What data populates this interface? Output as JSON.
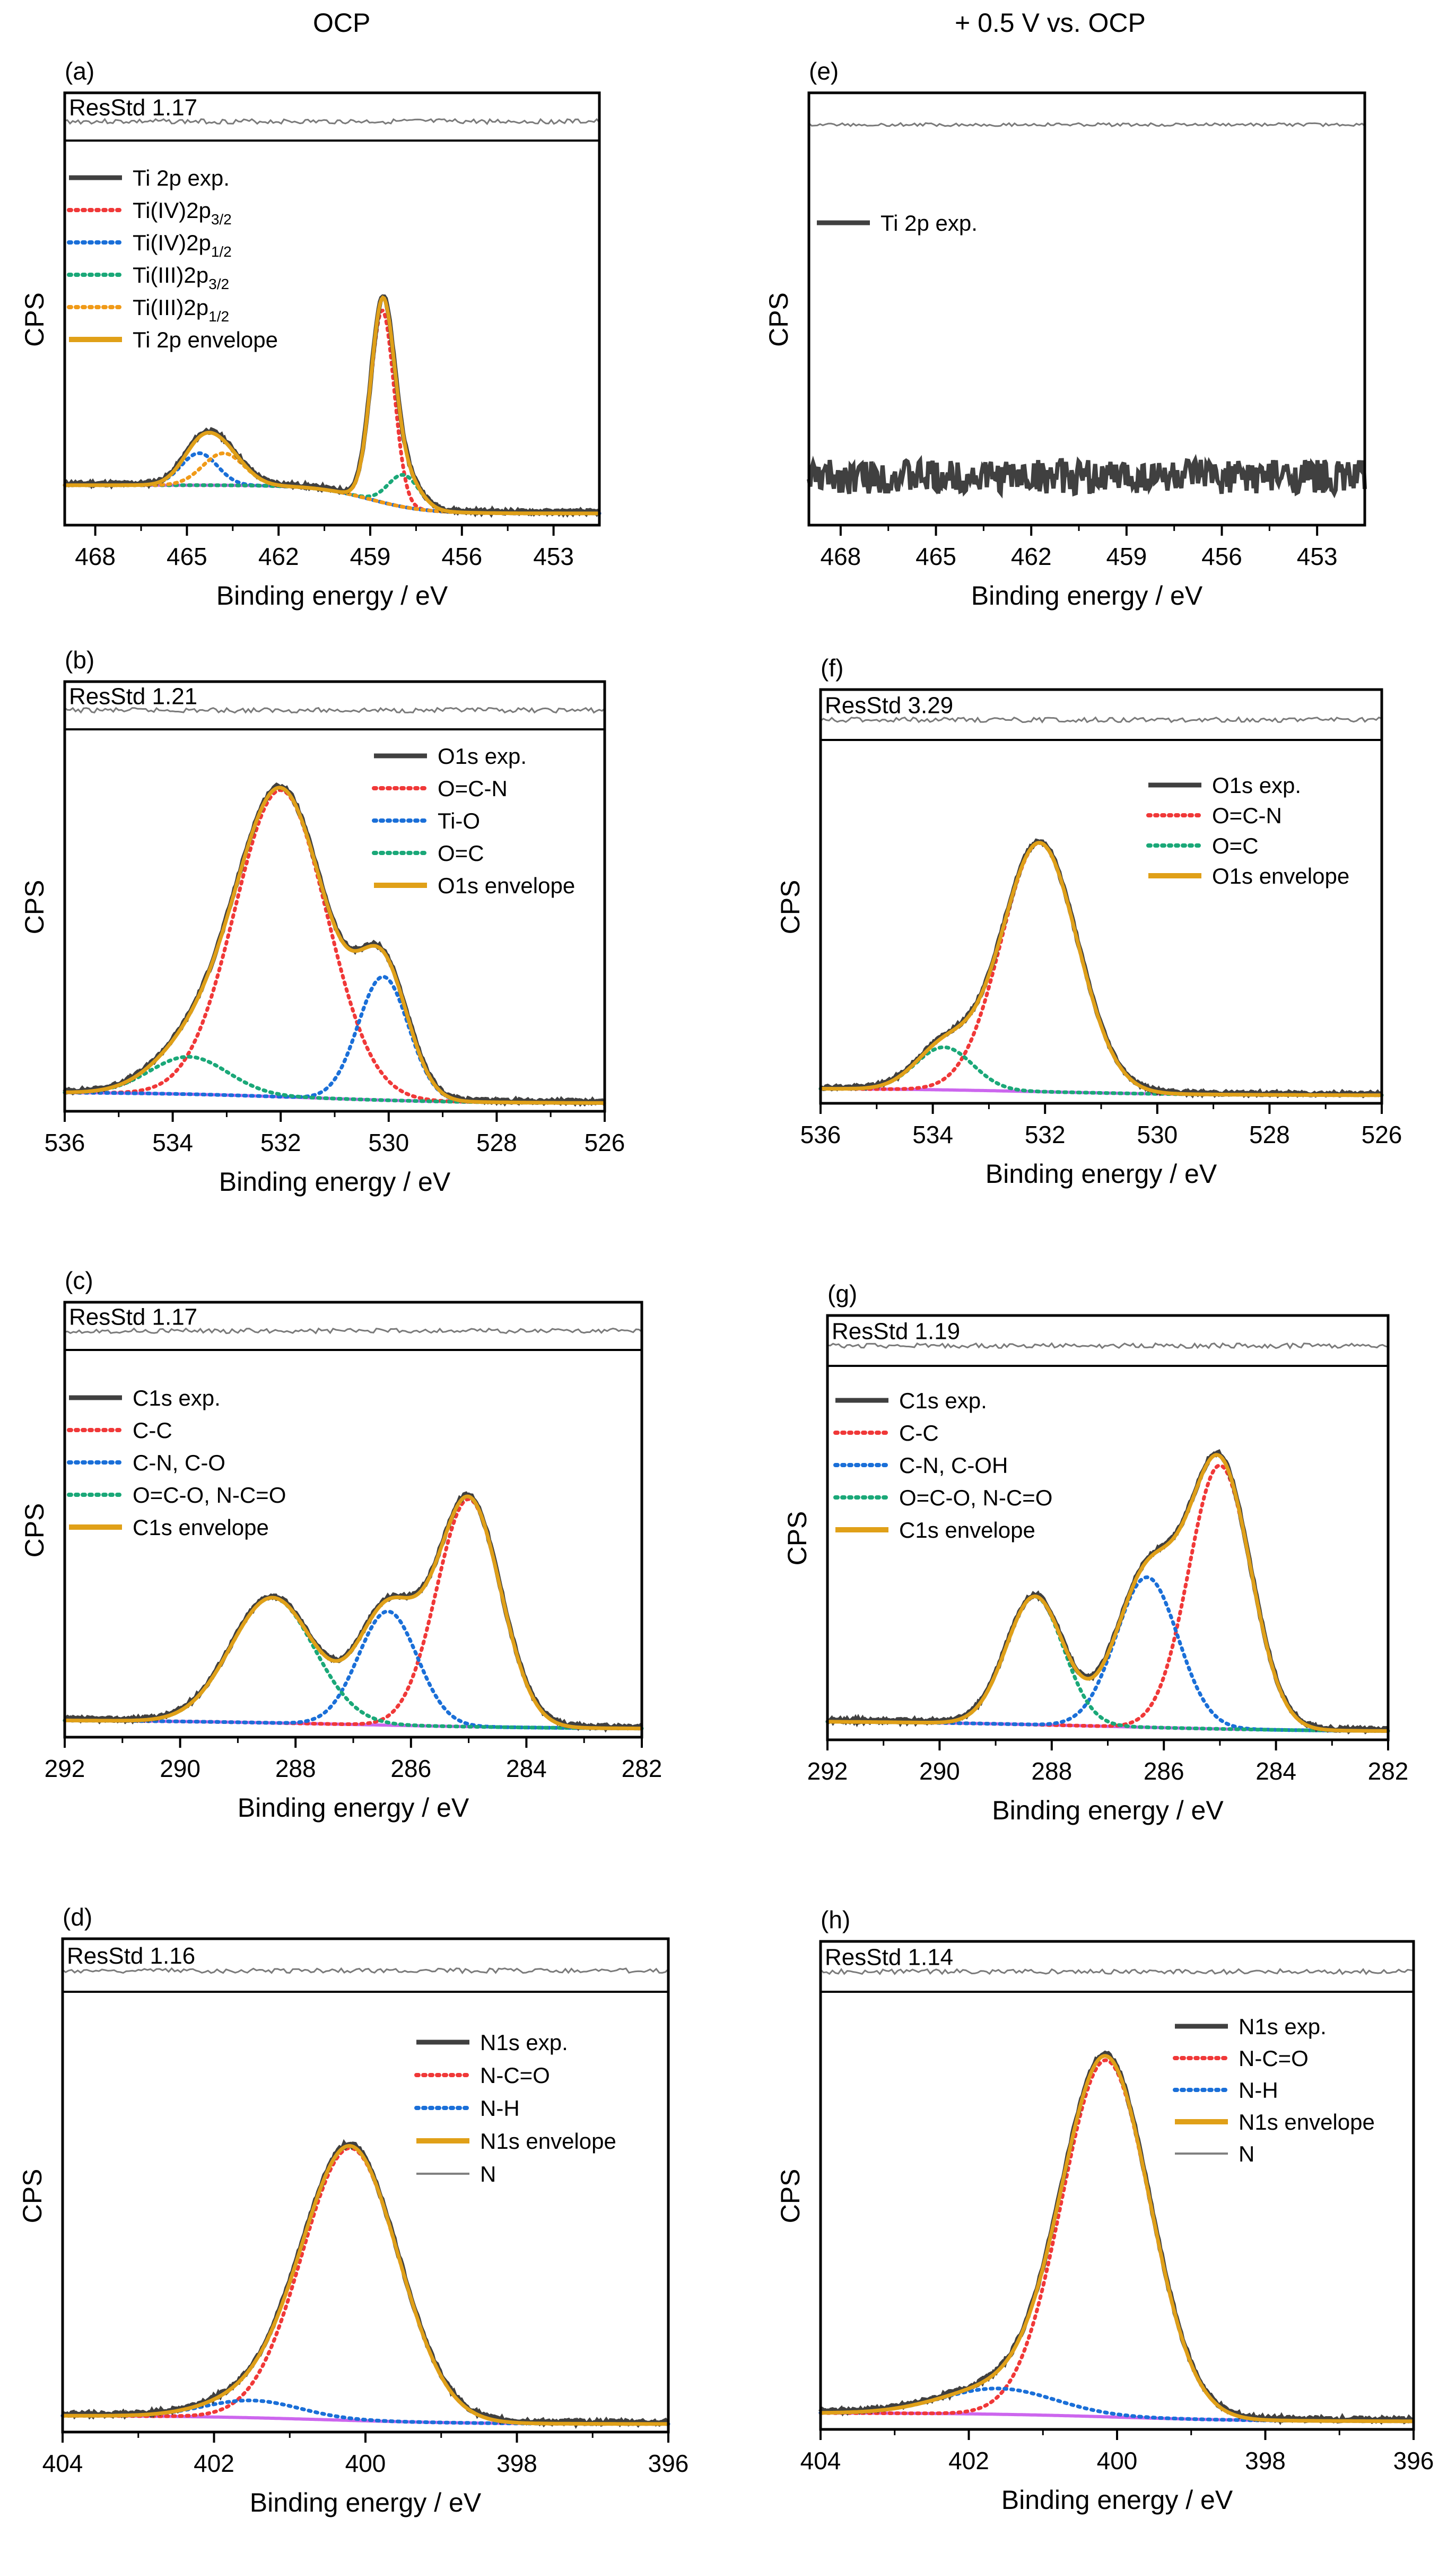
{
  "column_titles": [
    "OCP",
    "+ 0.5 V vs. OCP"
  ],
  "colors": {
    "exp": "#404040",
    "envelope": "#e0a018",
    "background": "#cc66ee",
    "residual": "#7a7a7a",
    "red": "#f03838",
    "blue": "#1a6fd8",
    "green": "#1aa878",
    "orange": "#f09a18",
    "thin": "#808080"
  },
  "chart_data": [
    {
      "panel": "(a)",
      "type": "line",
      "title": "",
      "xlabel": "Binding energy / eV",
      "ylabel": "CPS",
      "xlim": [
        469,
        451.5
      ],
      "ylim": [
        0,
        1
      ],
      "xticks": [
        468,
        465,
        462,
        459,
        456,
        453
      ],
      "resstd": "ResStd 1.17",
      "legend": [
        {
          "text": "Ti 2p exp.",
          "style": "exp"
        },
        {
          "text": "Ti(IV)2p",
          "sub": "3/2",
          "style": "red"
        },
        {
          "text": "Ti(IV)2p",
          "sub": "1/2",
          "style": "blue"
        },
        {
          "text": "Ti(III)2p",
          "sub": "3/2",
          "style": "green"
        },
        {
          "text": "Ti(III)2p",
          "sub": "1/2",
          "style": "orange"
        },
        {
          "text": "Ti 2p envelope",
          "style": "envelope"
        }
      ],
      "background": {
        "start": 0.085,
        "end": 0.01,
        "center": 459.0,
        "width": 0.9
      },
      "peaks": [
        {
          "style": "red",
          "center": 458.6,
          "height": 0.51,
          "fwhm": 0.9
        },
        {
          "style": "blue",
          "center": 464.6,
          "height": 0.085,
          "fwhm": 1.4
        },
        {
          "style": "green",
          "center": 457.9,
          "height": 0.085,
          "fwhm": 1.2
        },
        {
          "style": "orange",
          "center": 463.8,
          "height": 0.085,
          "fwhm": 1.6
        }
      ],
      "noise": 0.004
    },
    {
      "panel": "(b)",
      "type": "line",
      "title": "",
      "xlabel": "Binding energy / eV",
      "ylabel": "CPS",
      "xlim": [
        536,
        526
      ],
      "ylim": [
        0,
        1
      ],
      "xticks": [
        536,
        534,
        532,
        530,
        528,
        526
      ],
      "resstd": "ResStd 1.21",
      "legend": [
        {
          "text": "O1s exp.",
          "style": "exp"
        },
        {
          "text": "O=C-N",
          "style": "red"
        },
        {
          "text": "Ti-O",
          "style": "blue"
        },
        {
          "text": "O=C",
          "style": "green"
        },
        {
          "text": "O1s envelope",
          "style": "envelope"
        }
      ],
      "background": {
        "start": 0.03,
        "end": 0.0,
        "center": 531.5,
        "width": 1.5
      },
      "peaks": [
        {
          "style": "red",
          "center": 532.0,
          "height": 0.82,
          "fwhm": 2.0
        },
        {
          "style": "blue",
          "center": 530.1,
          "height": 0.33,
          "fwhm": 1.1
        },
        {
          "style": "green",
          "center": 533.7,
          "height": 0.1,
          "fwhm": 1.7
        }
      ],
      "noise": 0.004
    },
    {
      "panel": "(c)",
      "type": "line",
      "title": "",
      "xlabel": "Binding energy / eV",
      "ylabel": "CPS",
      "xlim": [
        292,
        282
      ],
      "ylim": [
        0,
        1
      ],
      "xticks": [
        292,
        290,
        288,
        286,
        284,
        282
      ],
      "resstd": "ResStd 1.17",
      "legend": [
        {
          "text": "C1s exp.",
          "style": "exp"
        },
        {
          "text": "C-C",
          "style": "red"
        },
        {
          "text": "C-N, C-O",
          "style": "blue"
        },
        {
          "text": "O=C-O, N-C=O",
          "style": "green"
        },
        {
          "text": "C1s envelope",
          "style": "envelope"
        }
      ],
      "background": {
        "start": 0.025,
        "end": 0.0,
        "center": 287.0,
        "width": 2.0
      },
      "peaks": [
        {
          "style": "red",
          "center": 285.0,
          "height": 0.6,
          "fwhm": 1.3
        },
        {
          "style": "blue",
          "center": 286.4,
          "height": 0.3,
          "fwhm": 1.2
        },
        {
          "style": "green",
          "center": 288.4,
          "height": 0.33,
          "fwhm": 1.7
        }
      ],
      "noise": 0.004
    },
    {
      "panel": "(d)",
      "type": "line",
      "title": "",
      "xlabel": "Binding energy / eV",
      "ylabel": "CPS",
      "xlim": [
        404,
        396
      ],
      "ylim": [
        0,
        1
      ],
      "xticks": [
        404,
        402,
        400,
        398,
        396
      ],
      "resstd": "ResStd 1.16",
      "legend": [
        {
          "text": "N1s exp.",
          "style": "exp"
        },
        {
          "text": "N-C=O",
          "style": "red"
        },
        {
          "text": "N-H",
          "style": "blue"
        },
        {
          "text": "N1s envelope",
          "style": "envelope"
        },
        {
          "text": "N",
          "style": "thin"
        }
      ],
      "background": {
        "start": 0.02,
        "end": 0.0,
        "center": 400.5,
        "width": 1.0
      },
      "peaks": [
        {
          "style": "red",
          "center": 400.2,
          "height": 0.63,
          "fwhm": 1.5
        },
        {
          "style": "blue",
          "center": 401.5,
          "height": 0.04,
          "fwhm": 1.5
        }
      ],
      "noise": 0.004
    },
    {
      "panel": "(e)",
      "type": "line",
      "title": "",
      "xlabel": "Binding energy / eV",
      "ylabel": "CPS",
      "xlim": [
        469,
        451.5
      ],
      "ylim": [
        0,
        1
      ],
      "xticks": [
        468,
        465,
        462,
        459,
        456,
        453
      ],
      "resstd": "",
      "legend": [
        {
          "text": "Ti 2p exp.",
          "style": "exp"
        }
      ],
      "background": {
        "start": 0.0,
        "end": 0.0,
        "center": 460,
        "width": 1
      },
      "peaks": [],
      "noise_only": true,
      "noise_base": 0.095,
      "noise": 0.04
    },
    {
      "panel": "(f)",
      "type": "line",
      "title": "",
      "xlabel": "Binding energy / eV",
      "ylabel": "CPS",
      "xlim": [
        536,
        526
      ],
      "ylim": [
        0,
        1
      ],
      "xticks": [
        536,
        534,
        532,
        530,
        528,
        526
      ],
      "resstd": "ResStd 3.29",
      "legend": [
        {
          "text": "O1s exp.",
          "style": "exp"
        },
        {
          "text": "O=C-N",
          "style": "red"
        },
        {
          "text": "O=C",
          "style": "green"
        },
        {
          "text": "O1s envelope",
          "style": "envelope"
        }
      ],
      "background": {
        "start": 0.02,
        "end": 0.0,
        "center": 532.0,
        "width": 1.5
      },
      "peaks": [
        {
          "style": "red",
          "center": 532.1,
          "height": 0.7,
          "fwhm": 1.6
        },
        {
          "style": "green",
          "center": 533.8,
          "height": 0.12,
          "fwhm": 1.2
        }
      ],
      "noise": 0.004
    },
    {
      "panel": "(g)",
      "type": "line",
      "title": "",
      "xlabel": "Binding energy / eV",
      "ylabel": "CPS",
      "xlim": [
        292,
        282
      ],
      "ylim": [
        0,
        1
      ],
      "xticks": [
        292,
        290,
        288,
        286,
        284,
        282
      ],
      "resstd": "ResStd 1.19",
      "legend": [
        {
          "text": "C1s exp.",
          "style": "exp"
        },
        {
          "text": "C-C",
          "style": "red"
        },
        {
          "text": "C-N, C-OH",
          "style": "blue"
        },
        {
          "text": "O=C-O, N-C=O",
          "style": "green"
        },
        {
          "text": "C1s envelope",
          "style": "envelope"
        }
      ],
      "background": {
        "start": 0.03,
        "end": 0.0,
        "center": 287.0,
        "width": 2.0
      },
      "peaks": [
        {
          "style": "red",
          "center": 285.0,
          "height": 0.72,
          "fwhm": 1.3
        },
        {
          "style": "blue",
          "center": 286.3,
          "height": 0.41,
          "fwhm": 1.3
        },
        {
          "style": "green",
          "center": 288.3,
          "height": 0.35,
          "fwhm": 1.2
        }
      ],
      "noise": 0.004
    },
    {
      "panel": "(h)",
      "type": "line",
      "title": "",
      "xlabel": "Binding energy / eV",
      "ylabel": "CPS",
      "xlim": [
        404,
        396
      ],
      "ylim": [
        0,
        1
      ],
      "xticks": [
        404,
        402,
        400,
        398,
        396
      ],
      "resstd": "ResStd 1.14",
      "legend": [
        {
          "text": "N1s exp.",
          "style": "exp"
        },
        {
          "text": "N-C=O",
          "style": "red"
        },
        {
          "text": "N-H",
          "style": "blue"
        },
        {
          "text": "N1s envelope",
          "style": "envelope"
        },
        {
          "text": "N",
          "style": "thin"
        }
      ],
      "background": {
        "start": 0.02,
        "end": 0.0,
        "center": 400.0,
        "width": 1.0
      },
      "peaks": [
        {
          "style": "red",
          "center": 400.15,
          "height": 0.83,
          "fwhm": 1.4
        },
        {
          "style": "blue",
          "center": 401.6,
          "height": 0.06,
          "fwhm": 1.8
        }
      ],
      "noise": 0.004
    }
  ]
}
